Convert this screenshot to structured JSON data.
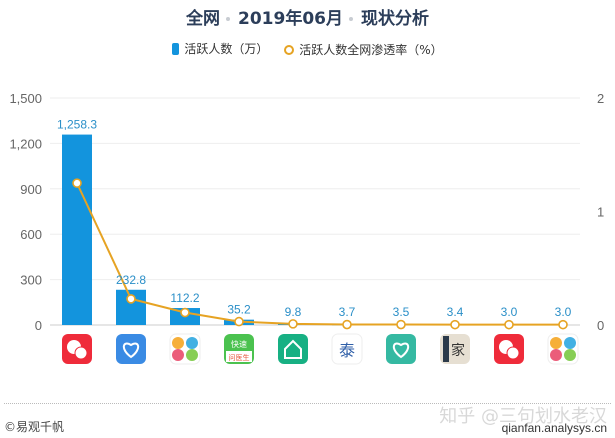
{
  "header": {
    "title_parts": [
      "全网",
      "2019年06月",
      "现状分析"
    ]
  },
  "legend": {
    "bar_label": "活跃人数（万）",
    "line_label": "活跃人数全网渗透率（%）"
  },
  "colors": {
    "bar": "#1394dd",
    "line": "#e6a323",
    "label": "#2a8fc8",
    "grid": "#eeeeee",
    "axis_text": "#666666"
  },
  "chart_data": {
    "type": "bar+line",
    "title": "全网 2019年06月 现状分析",
    "categories": [
      "App 1",
      "App 2",
      "App 3",
      "快速问医生",
      "App 5",
      "App 6",
      "App 7",
      "App 8",
      "App 9",
      "App 10"
    ],
    "series": [
      {
        "name": "活跃人数（万）",
        "type": "bar",
        "axis": "left",
        "values": [
          1258.3,
          232.8,
          112.2,
          35.2,
          9.8,
          3.7,
          3.5,
          3.4,
          3.0,
          3.0
        ],
        "labels": [
          "1,258.3",
          "232.8",
          "112.2",
          "35.2",
          "9.8",
          "3.7",
          "3.5",
          "3.4",
          "3.0",
          "3.0"
        ]
      },
      {
        "name": "活跃人数全网渗透率（%）",
        "type": "line",
        "axis": "right",
        "values": [
          1.25,
          0.23,
          0.11,
          0.03,
          0.01,
          0.004,
          0.004,
          0.003,
          0.003,
          0.003
        ]
      }
    ],
    "y_left": {
      "ylim": [
        0,
        1500
      ],
      "ticks": [
        "0",
        "300",
        "600",
        "900",
        "1,200",
        "1,500"
      ]
    },
    "y_right": {
      "ylim": [
        0,
        2
      ],
      "ticks": [
        "0",
        "1",
        "2"
      ]
    },
    "xlabel": "",
    "grid": true,
    "legend_position": "top"
  },
  "footer": {
    "copyright": "©易观千帆",
    "watermark": "知乎 @三句划水老汉",
    "site": "qianfan.analysys.cn"
  }
}
